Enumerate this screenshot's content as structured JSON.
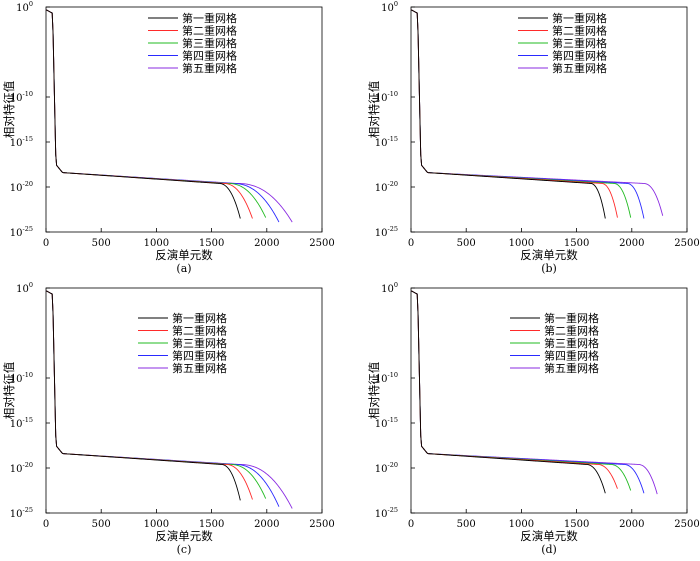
{
  "chart_data": [
    {
      "type": "line",
      "panel_label": "(a)",
      "xlabel": "反演单元数",
      "ylabel": "相对特征值",
      "xlim": [
        0,
        2500
      ],
      "ylim_log10": [
        -25,
        0
      ],
      "x_ticks": [
        "0",
        "500",
        "1000",
        "1500",
        "2000",
        "2500"
      ],
      "y_ticks": [
        {
          "base": "10",
          "exp": "0"
        },
        {
          "base": "10",
          "exp": "-10"
        },
        {
          "base": "10",
          "exp": "-15"
        },
        {
          "base": "10",
          "exp": "-20"
        },
        {
          "base": "10",
          "exp": "-25"
        }
      ],
      "legend_position": "top-center",
      "series": [
        {
          "name": "第一重网格",
          "color": "#000000",
          "end_n": 1760,
          "knee_n": 1560,
          "end_log": -23.5
        },
        {
          "name": "第二重网格",
          "color": "#ff2a2a",
          "end_n": 1870,
          "knee_n": 1600,
          "end_log": -23.5
        },
        {
          "name": "第三重网格",
          "color": "#22bb22",
          "end_n": 1990,
          "knee_n": 1640,
          "end_log": -23.4
        },
        {
          "name": "第四重网格",
          "color": "#2a2aff",
          "end_n": 2110,
          "knee_n": 1680,
          "end_log": -23.9
        },
        {
          "name": "第五重网格",
          "color": "#8a2be2",
          "end_n": 2230,
          "knee_n": 1720,
          "end_log": -23.9
        }
      ]
    },
    {
      "type": "line",
      "panel_label": "(b)",
      "xlabel": "反演单元数",
      "ylabel": "相对特征值",
      "xlim": [
        0,
        2500
      ],
      "ylim_log10": [
        -25,
        0
      ],
      "x_ticks": [
        "0",
        "500",
        "1000",
        "1500",
        "2000",
        "2500"
      ],
      "y_ticks": [
        {
          "base": "10",
          "exp": "0"
        },
        {
          "base": "10",
          "exp": "-10"
        },
        {
          "base": "10",
          "exp": "-15"
        },
        {
          "base": "10",
          "exp": "-20"
        },
        {
          "base": "10",
          "exp": "-25"
        }
      ],
      "legend_position": "top-right",
      "series": [
        {
          "name": "第一重网格",
          "color": "#000000",
          "end_n": 1760,
          "knee_n": 1620,
          "end_log": -23.5
        },
        {
          "name": "第二重网格",
          "color": "#ff2a2a",
          "end_n": 1870,
          "knee_n": 1720,
          "end_log": -23.4
        },
        {
          "name": "第三重网格",
          "color": "#22bb22",
          "end_n": 1990,
          "knee_n": 1830,
          "end_log": -23.4
        },
        {
          "name": "第四重网格",
          "color": "#2a2aff",
          "end_n": 2110,
          "knee_n": 1950,
          "end_log": -23.5
        },
        {
          "name": "第五重网格",
          "color": "#8a2be2",
          "end_n": 2280,
          "knee_n": 2100,
          "end_log": -23.2
        }
      ]
    },
    {
      "type": "line",
      "panel_label": "(c)",
      "xlabel": "反演单元数",
      "ylabel": "相对特征值",
      "xlim": [
        0,
        2500
      ],
      "ylim_log10": [
        -25,
        0
      ],
      "x_ticks": [
        "0",
        "500",
        "1000",
        "1500",
        "2000",
        "2500"
      ],
      "y_ticks": [
        {
          "base": "10",
          "exp": "0"
        },
        {
          "base": "10",
          "exp": "-10"
        },
        {
          "base": "10",
          "exp": "-15"
        },
        {
          "base": "10",
          "exp": "-20"
        },
        {
          "base": "10",
          "exp": "-25"
        }
      ],
      "legend_position": "top-center",
      "series": [
        {
          "name": "第一重网格",
          "color": "#000000",
          "end_n": 1760,
          "knee_n": 1580,
          "end_log": -23.6
        },
        {
          "name": "第二重网格",
          "color": "#ff2a2a",
          "end_n": 1870,
          "knee_n": 1620,
          "end_log": -23.5
        },
        {
          "name": "第三重网格",
          "color": "#22bb22",
          "end_n": 1990,
          "knee_n": 1660,
          "end_log": -23.4
        },
        {
          "name": "第四重网格",
          "color": "#2a2aff",
          "end_n": 2110,
          "knee_n": 1700,
          "end_log": -24.3
        },
        {
          "name": "第五重网格",
          "color": "#8a2be2",
          "end_n": 2230,
          "knee_n": 1740,
          "end_log": -24.5
        }
      ]
    },
    {
      "type": "line",
      "panel_label": "(d)",
      "xlabel": "反演单元数",
      "ylabel": "相对特征值",
      "xlim": [
        0,
        2500
      ],
      "ylim_log10": [
        -25,
        0
      ],
      "x_ticks": [
        "0",
        "500",
        "1000",
        "1500",
        "2000",
        "2500"
      ],
      "y_ticks": [
        {
          "base": "10",
          "exp": "0"
        },
        {
          "base": "10",
          "exp": "-10"
        },
        {
          "base": "10",
          "exp": "-15"
        },
        {
          "base": "10",
          "exp": "-20"
        },
        {
          "base": "10",
          "exp": "-25"
        }
      ],
      "legend_position": "top-right",
      "series": [
        {
          "name": "第一重网格",
          "color": "#000000",
          "end_n": 1760,
          "knee_n": 1580,
          "end_log": -22.8
        },
        {
          "name": "第二重网格",
          "color": "#ff2a2a",
          "end_n": 1870,
          "knee_n": 1680,
          "end_log": -22.3
        },
        {
          "name": "第三重网格",
          "color": "#22bb22",
          "end_n": 1990,
          "knee_n": 1800,
          "end_log": -22.5
        },
        {
          "name": "第四重网格",
          "color": "#2a2aff",
          "end_n": 2110,
          "knee_n": 1920,
          "end_log": -22.8
        },
        {
          "name": "第五重网格",
          "color": "#8a2be2",
          "end_n": 2230,
          "knee_n": 2050,
          "end_log": -22.9
        }
      ]
    }
  ]
}
